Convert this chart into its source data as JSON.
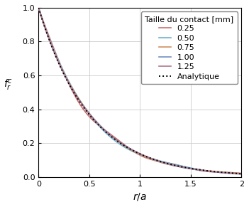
{
  "xlabel": "$r/a$",
  "ylabel": "$f_r^c$",
  "xlim": [
    0,
    2
  ],
  "ylim": [
    0,
    1
  ],
  "xticks": [
    0,
    0.5,
    1.0,
    1.5,
    2.0
  ],
  "yticks": [
    0,
    0.2,
    0.4,
    0.6,
    0.8,
    1.0
  ],
  "legend_title": "Taille du contact [mm]",
  "series": [
    {
      "label": "0.25",
      "color": "#c87070",
      "lw": 1.2,
      "scale": 0.25
    },
    {
      "label": "0.50",
      "color": "#70b0d0",
      "lw": 1.2,
      "scale": 0.5
    },
    {
      "label": "0.75",
      "color": "#d09060",
      "lw": 1.2,
      "scale": 0.75
    },
    {
      "label": "1.00",
      "color": "#7090c0",
      "lw": 1.2,
      "scale": 1.0
    },
    {
      "label": "1.25",
      "color": "#b07890",
      "lw": 1.2,
      "scale": 1.25
    }
  ],
  "analytique_color": "#000000",
  "analytique_lw": 1.4,
  "background_color": "#ffffff",
  "grid_color": "#cccccc",
  "figsize": [
    3.51,
    2.91
  ],
  "dpi": 100
}
